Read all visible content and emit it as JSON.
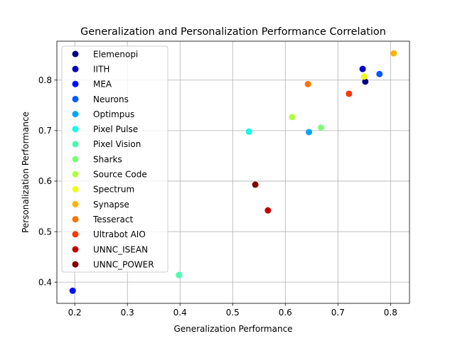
{
  "chart_data": {
    "type": "scatter",
    "title": "Generalization and Personalization Performance Correlation",
    "xlabel": "Generalization Performance",
    "ylabel": "Personalization Performance",
    "xlim": [
      0.166,
      0.836
    ],
    "ylim": [
      0.358,
      0.877
    ],
    "xticks": [
      0.2,
      0.3,
      0.4,
      0.5,
      0.6,
      0.7,
      0.8
    ],
    "yticks": [
      0.4,
      0.5,
      0.6,
      0.7,
      0.8
    ],
    "xtick_labels": [
      "0.2",
      "0.3",
      "0.4",
      "0.5",
      "0.6",
      "0.7",
      "0.8"
    ],
    "ytick_labels": [
      "0.4",
      "0.5",
      "0.6",
      "0.7",
      "0.8"
    ],
    "grid": true,
    "legend_position": "upper-left",
    "series": [
      {
        "name": "Elemenopi",
        "color": "#000080",
        "x": 0.752,
        "y": 0.797
      },
      {
        "name": "IITH",
        "color": "#0000c4",
        "x": 0.747,
        "y": 0.822
      },
      {
        "name": "MEA",
        "color": "#0010ff",
        "x": 0.196,
        "y": 0.383
      },
      {
        "name": "Neurons",
        "color": "#0058ff",
        "x": 0.779,
        "y": 0.812
      },
      {
        "name": "Optimpus",
        "color": "#00a4ff",
        "x": 0.645,
        "y": 0.697
      },
      {
        "name": "Pixel Pulse",
        "color": "#13fcec",
        "x": 0.531,
        "y": 0.698
      },
      {
        "name": "Pixel Vision",
        "color": "#49ffad",
        "x": 0.398,
        "y": 0.414
      },
      {
        "name": "Sharks",
        "color": "#7dff7a",
        "x": 0.668,
        "y": 0.706
      },
      {
        "name": "Source Code",
        "color": "#b1ff46",
        "x": 0.613,
        "y": 0.727
      },
      {
        "name": "Spectrum",
        "color": "#ecff13",
        "x": 0.75,
        "y": 0.807
      },
      {
        "name": "Synapse",
        "color": "#ffb200",
        "x": 0.806,
        "y": 0.853
      },
      {
        "name": "Tesseract",
        "color": "#ff7300",
        "x": 0.643,
        "y": 0.792
      },
      {
        "name": "Ultrabot AIO",
        "color": "#ff3700",
        "x": 0.721,
        "y": 0.773
      },
      {
        "name": "UNNC_ISEAN",
        "color": "#c40000",
        "x": 0.567,
        "y": 0.542
      },
      {
        "name": "UNNC_POWER",
        "color": "#800000",
        "x": 0.543,
        "y": 0.593
      }
    ]
  }
}
